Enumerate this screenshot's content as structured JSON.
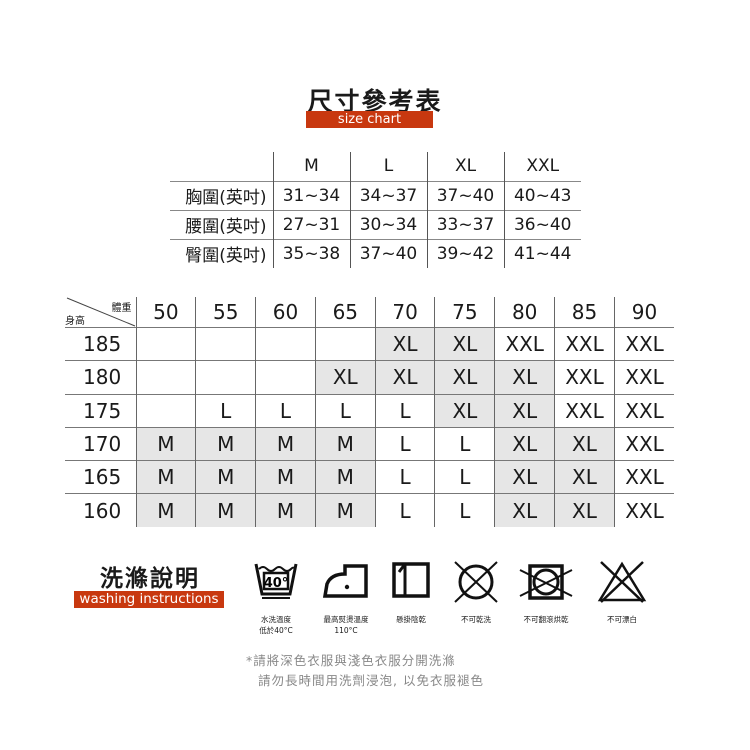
{
  "header": {
    "title": "尺寸參考表",
    "subtitle": "size chart"
  },
  "size_table": {
    "columns": [
      "M",
      "L",
      "XL",
      "XXL"
    ],
    "rows": [
      {
        "label": "胸圍(英吋)",
        "values": [
          "31~34",
          "34~37",
          "37~40",
          "40~43"
        ]
      },
      {
        "label": "腰圍(英吋)",
        "values": [
          "27~31",
          "30~34",
          "33~37",
          "36~40"
        ]
      },
      {
        "label": "臀圍(英吋)",
        "values": [
          "35~38",
          "37~40",
          "39~42",
          "41~44"
        ]
      }
    ]
  },
  "fit_grid": {
    "weight_label": "體重",
    "height_label": "身高",
    "weights": [
      "50",
      "55",
      "60",
      "65",
      "70",
      "75",
      "80",
      "85",
      "90"
    ],
    "highlight_color": "#e6e6e6",
    "rows": [
      {
        "height": "185",
        "sizes": [
          "",
          "",
          "",
          "",
          "XL",
          "XL",
          "XXL",
          "XXL",
          "XXL"
        ],
        "shaded": [
          0,
          0,
          0,
          0,
          1,
          1,
          0,
          0,
          0
        ]
      },
      {
        "height": "180",
        "sizes": [
          "",
          "",
          "",
          "XL",
          "XL",
          "XL",
          "XL",
          "XXL",
          "XXL"
        ],
        "shaded": [
          0,
          0,
          0,
          1,
          1,
          1,
          1,
          0,
          0
        ]
      },
      {
        "height": "175",
        "sizes": [
          "",
          "L",
          "L",
          "L",
          "L",
          "XL",
          "XL",
          "XXL",
          "XXL"
        ],
        "shaded": [
          0,
          0,
          0,
          0,
          0,
          1,
          1,
          0,
          0
        ]
      },
      {
        "height": "170",
        "sizes": [
          "M",
          "M",
          "M",
          "M",
          "L",
          "L",
          "XL",
          "XL",
          "XXL"
        ],
        "shaded": [
          1,
          1,
          1,
          1,
          0,
          0,
          1,
          1,
          0
        ]
      },
      {
        "height": "165",
        "sizes": [
          "M",
          "M",
          "M",
          "M",
          "L",
          "L",
          "XL",
          "XL",
          "XXL"
        ],
        "shaded": [
          1,
          1,
          1,
          1,
          0,
          0,
          1,
          1,
          0
        ]
      },
      {
        "height": "160",
        "sizes": [
          "M",
          "M",
          "M",
          "M",
          "L",
          "L",
          "XL",
          "XL",
          "XXL"
        ],
        "shaded": [
          1,
          1,
          1,
          1,
          0,
          0,
          1,
          1,
          0
        ]
      }
    ]
  },
  "washing": {
    "title": "洗滌說明",
    "subtitle": "washing instructions",
    "accent": "#c8380f",
    "icons": [
      {
        "icon": "wash-40-icon",
        "text": "40°",
        "label1": "水洗溫度",
        "label2": "低於40°C"
      },
      {
        "icon": "iron-icon",
        "label1": "最高熨燙溫度",
        "label2": "110°C"
      },
      {
        "icon": "line-dry-shade-icon",
        "label1": "懸掛陰乾",
        "label2": ""
      },
      {
        "icon": "no-dry-clean-icon",
        "label1": "不可乾洗",
        "label2": ""
      },
      {
        "icon": "no-tumble-dry-icon",
        "label1": "不可翻滾烘乾",
        "label2": ""
      },
      {
        "icon": "no-bleach-icon",
        "label1": "不可漂白",
        "label2": ""
      }
    ],
    "notes": [
      "*請將深色衣服與淺色衣服分開洗滌",
      "請勿長時間用洗劑浸泡, 以免衣服褪色"
    ]
  }
}
